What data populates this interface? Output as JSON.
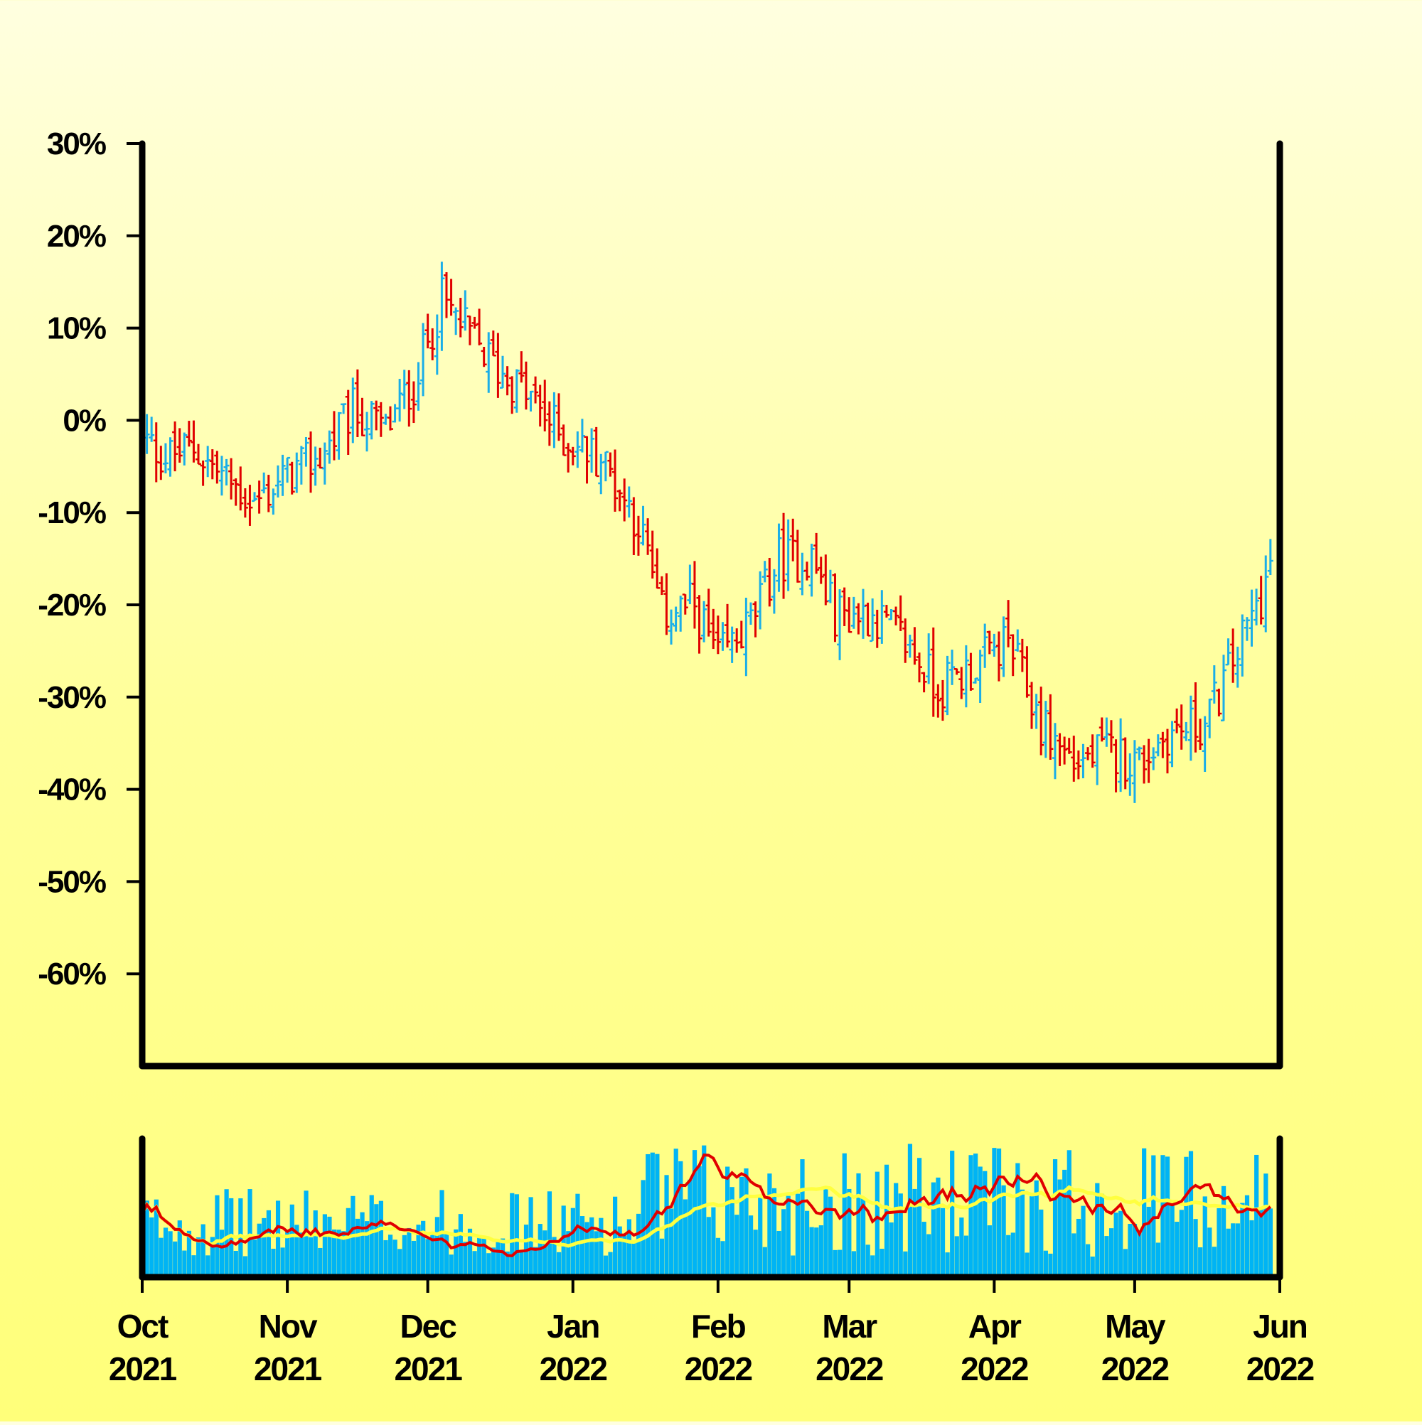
{
  "chart_data": {
    "type": "ohlc",
    "y_unit": "%",
    "y_ticks": [
      "30%",
      "20%",
      "10%",
      "0%",
      "-10%",
      "-20%",
      "-30%",
      "-40%",
      "-50%",
      "-60%"
    ],
    "y_tick_values": [
      30,
      20,
      10,
      0,
      -10,
      -20,
      -30,
      -40,
      -50,
      -60
    ],
    "ylim": [
      -70,
      30
    ],
    "x_ticks": [
      {
        "month": "Oct",
        "year": "2021",
        "date": "2021-10-01"
      },
      {
        "month": "Nov",
        "year": "2021",
        "date": "2021-11-01"
      },
      {
        "month": "Dec",
        "year": "2021",
        "date": "2021-12-01"
      },
      {
        "month": "Jan",
        "year": "2022",
        "date": "2022-01-01"
      },
      {
        "month": "Feb",
        "year": "2022",
        "date": "2022-02-01"
      },
      {
        "month": "Mar",
        "year": "2022",
        "date": "2022-03-01"
      },
      {
        "month": "Apr",
        "year": "2022",
        "date": "2022-04-01"
      },
      {
        "month": "May",
        "year": "2022",
        "date": "2022-05-01"
      },
      {
        "month": "Jun",
        "year": "2022",
        "date": "2022-06-01"
      }
    ],
    "xlim": [
      "2021-10-01",
      "2022-06-01"
    ],
    "close_path": [
      [
        "2021-10-01",
        -2
      ],
      [
        "2021-10-06",
        -4
      ],
      [
        "2021-10-12",
        -3
      ],
      [
        "2021-10-18",
        -6
      ],
      [
        "2021-10-25",
        -9
      ],
      [
        "2021-11-01",
        -6
      ],
      [
        "2021-11-08",
        -4
      ],
      [
        "2021-11-15",
        1
      ],
      [
        "2021-11-22",
        -1
      ],
      [
        "2021-11-28",
        4
      ],
      [
        "2021-12-04",
        13
      ],
      [
        "2021-12-07",
        11
      ],
      [
        "2021-12-15",
        6
      ],
      [
        "2021-12-22",
        3
      ],
      [
        "2021-12-30",
        -2
      ],
      [
        "2022-01-07",
        -4
      ],
      [
        "2022-01-15",
        -11
      ],
      [
        "2022-01-20",
        -21
      ],
      [
        "2022-01-27",
        -20
      ],
      [
        "2022-02-01",
        -26
      ],
      [
        "2022-02-08",
        -22
      ],
      [
        "2022-02-14",
        -15
      ],
      [
        "2022-02-21",
        -15
      ],
      [
        "2022-02-26",
        -21
      ],
      [
        "2022-03-06",
        -21
      ],
      [
        "2022-03-13",
        -24
      ],
      [
        "2022-03-20",
        -29
      ],
      [
        "2022-03-27",
        -27
      ],
      [
        "2022-04-04",
        -24
      ],
      [
        "2022-04-11",
        -33
      ],
      [
        "2022-04-18",
        -37
      ],
      [
        "2022-04-25",
        -36
      ],
      [
        "2022-05-02",
        -37
      ],
      [
        "2022-05-08",
        -34
      ],
      [
        "2022-05-16",
        -33
      ],
      [
        "2022-05-23",
        -25
      ],
      [
        "2022-05-28",
        -19
      ],
      [
        "2022-05-30",
        -16
      ]
    ],
    "colors": {
      "up": "#1aaee8",
      "down": "#e00000",
      "volume": "#00b4f4",
      "ma_fast": "#e00000",
      "ma_slow": "#ffff40",
      "axis": "#000000"
    }
  }
}
